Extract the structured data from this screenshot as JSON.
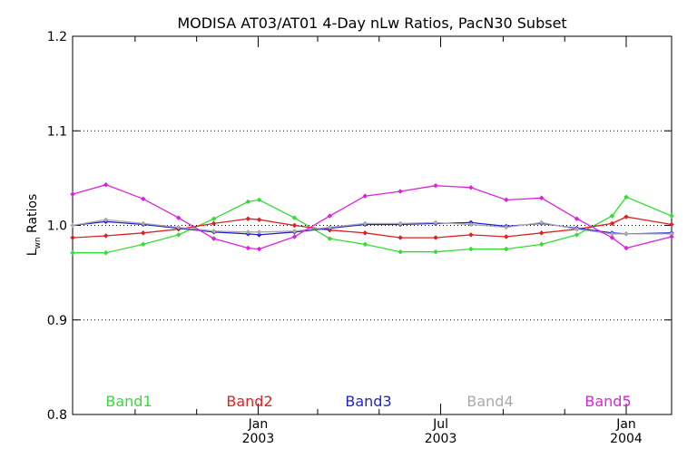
{
  "chart_data": {
    "type": "line",
    "title": "MODISA AT03/AT01 4-Day nLw Ratios, PacN30 Subset",
    "ylabel_main": "L",
    "ylabel_sub": "wn",
    "ylabel_rest": " Ratios",
    "ylim": [
      0.8,
      1.2
    ],
    "yticks": [
      {
        "value": 0.8,
        "label": "0.8"
      },
      {
        "value": 0.9,
        "label": "0.9"
      },
      {
        "value": 1.0,
        "label": "1.0"
      },
      {
        "value": 1.1,
        "label": "1.1"
      },
      {
        "value": 1.2,
        "label": "1.2"
      }
    ],
    "ygrid": [
      0.9,
      1.0,
      1.1
    ],
    "xlim": [
      "2002-07-01",
      "2004-02-15"
    ],
    "xticks_major": [
      {
        "date": "2003-01-01",
        "month": "Jan",
        "year": "2003"
      },
      {
        "date": "2003-07-01",
        "month": "Jul",
        "year": "2003"
      },
      {
        "date": "2004-01-01",
        "month": "Jan",
        "year": "2004"
      }
    ],
    "xticks_minor": [
      "2002-07-01",
      "2002-09-01",
      "2002-11-01",
      "2003-03-01",
      "2003-05-01",
      "2003-09-01",
      "2003-11-01"
    ],
    "series": [
      {
        "name": "Band1",
        "color": "#33dd33",
        "x": [
          "2002-07-01",
          "2002-08-03",
          "2002-09-09",
          "2002-10-14",
          "2002-11-18",
          "2002-12-22",
          "2003-01-02",
          "2003-02-06",
          "2003-03-13",
          "2003-04-17",
          "2003-05-22",
          "2003-06-26",
          "2003-07-31",
          "2003-09-04",
          "2003-10-09",
          "2003-11-13",
          "2003-12-18",
          "2004-01-01",
          "2004-02-15"
        ],
        "values": [
          0.971,
          0.971,
          0.98,
          0.99,
          1.007,
          1.025,
          1.027,
          1.008,
          0.986,
          0.98,
          0.972,
          0.972,
          0.975,
          0.975,
          0.98,
          0.99,
          1.01,
          1.03,
          1.01
        ]
      },
      {
        "name": "Band2",
        "color": "#dd2222",
        "x": [
          "2002-07-01",
          "2002-08-03",
          "2002-09-09",
          "2002-10-14",
          "2002-11-18",
          "2002-12-22",
          "2003-01-02",
          "2003-02-06",
          "2003-03-13",
          "2003-04-17",
          "2003-05-22",
          "2003-06-26",
          "2003-07-31",
          "2003-09-04",
          "2003-10-09",
          "2003-11-13",
          "2003-12-18",
          "2004-01-01",
          "2004-02-15"
        ],
        "values": [
          0.987,
          0.989,
          0.992,
          0.996,
          1.002,
          1.007,
          1.006,
          1.0,
          0.995,
          0.992,
          0.987,
          0.987,
          0.99,
          0.988,
          0.992,
          0.996,
          1.002,
          1.009,
          1.001
        ]
      },
      {
        "name": "Band3",
        "color": "#2222cc",
        "x": [
          "2002-07-01",
          "2002-08-03",
          "2002-09-09",
          "2002-10-14",
          "2002-11-18",
          "2002-12-22",
          "2003-01-02",
          "2003-02-06",
          "2003-03-13",
          "2003-04-17",
          "2003-05-22",
          "2003-06-26",
          "2003-07-31",
          "2003-09-04",
          "2003-10-09",
          "2003-11-13",
          "2003-12-18",
          "2004-01-01",
          "2004-02-15"
        ],
        "values": [
          1.0,
          1.004,
          1.001,
          0.997,
          0.993,
          0.991,
          0.99,
          0.993,
          0.997,
          1.001,
          1.001,
          1.002,
          1.003,
          0.999,
          1.002,
          0.997,
          0.992,
          0.991,
          0.992
        ]
      },
      {
        "name": "Band4",
        "color": "#aaaaaa",
        "x": [
          "2002-07-01",
          "2002-08-03",
          "2002-09-09",
          "2002-10-14",
          "2002-11-18",
          "2002-12-22",
          "2003-01-02",
          "2003-02-06",
          "2003-03-13",
          "2003-04-17",
          "2003-05-22",
          "2003-06-26",
          "2003-07-31",
          "2003-09-04",
          "2003-10-09",
          "2003-11-13",
          "2003-12-18",
          "2004-01-01",
          "2004-02-15"
        ],
        "values": [
          1.0,
          1.006,
          1.002,
          0.998,
          0.994,
          0.993,
          0.993,
          0.994,
          0.998,
          1.002,
          1.002,
          1.003,
          1.001,
          0.998,
          1.003,
          0.996,
          0.991,
          0.991,
          0.991
        ]
      },
      {
        "name": "Band5",
        "color": "#dd22dd",
        "x": [
          "2002-07-01",
          "2002-08-03",
          "2002-09-09",
          "2002-10-14",
          "2002-11-18",
          "2002-12-22",
          "2003-01-02",
          "2003-02-06",
          "2003-03-13",
          "2003-04-17",
          "2003-05-22",
          "2003-06-26",
          "2003-07-31",
          "2003-09-04",
          "2003-10-09",
          "2003-11-13",
          "2003-12-18",
          "2004-01-01",
          "2004-02-15"
        ],
        "values": [
          1.033,
          1.043,
          1.028,
          1.008,
          0.986,
          0.976,
          0.975,
          0.988,
          1.01,
          1.031,
          1.036,
          1.042,
          1.04,
          1.027,
          1.029,
          1.007,
          0.987,
          0.976,
          0.988
        ]
      }
    ],
    "legend_placement": "bottom inside plot, horizontal",
    "grid": "dotted horizontal at 0.9, 1.0, 1.1"
  }
}
